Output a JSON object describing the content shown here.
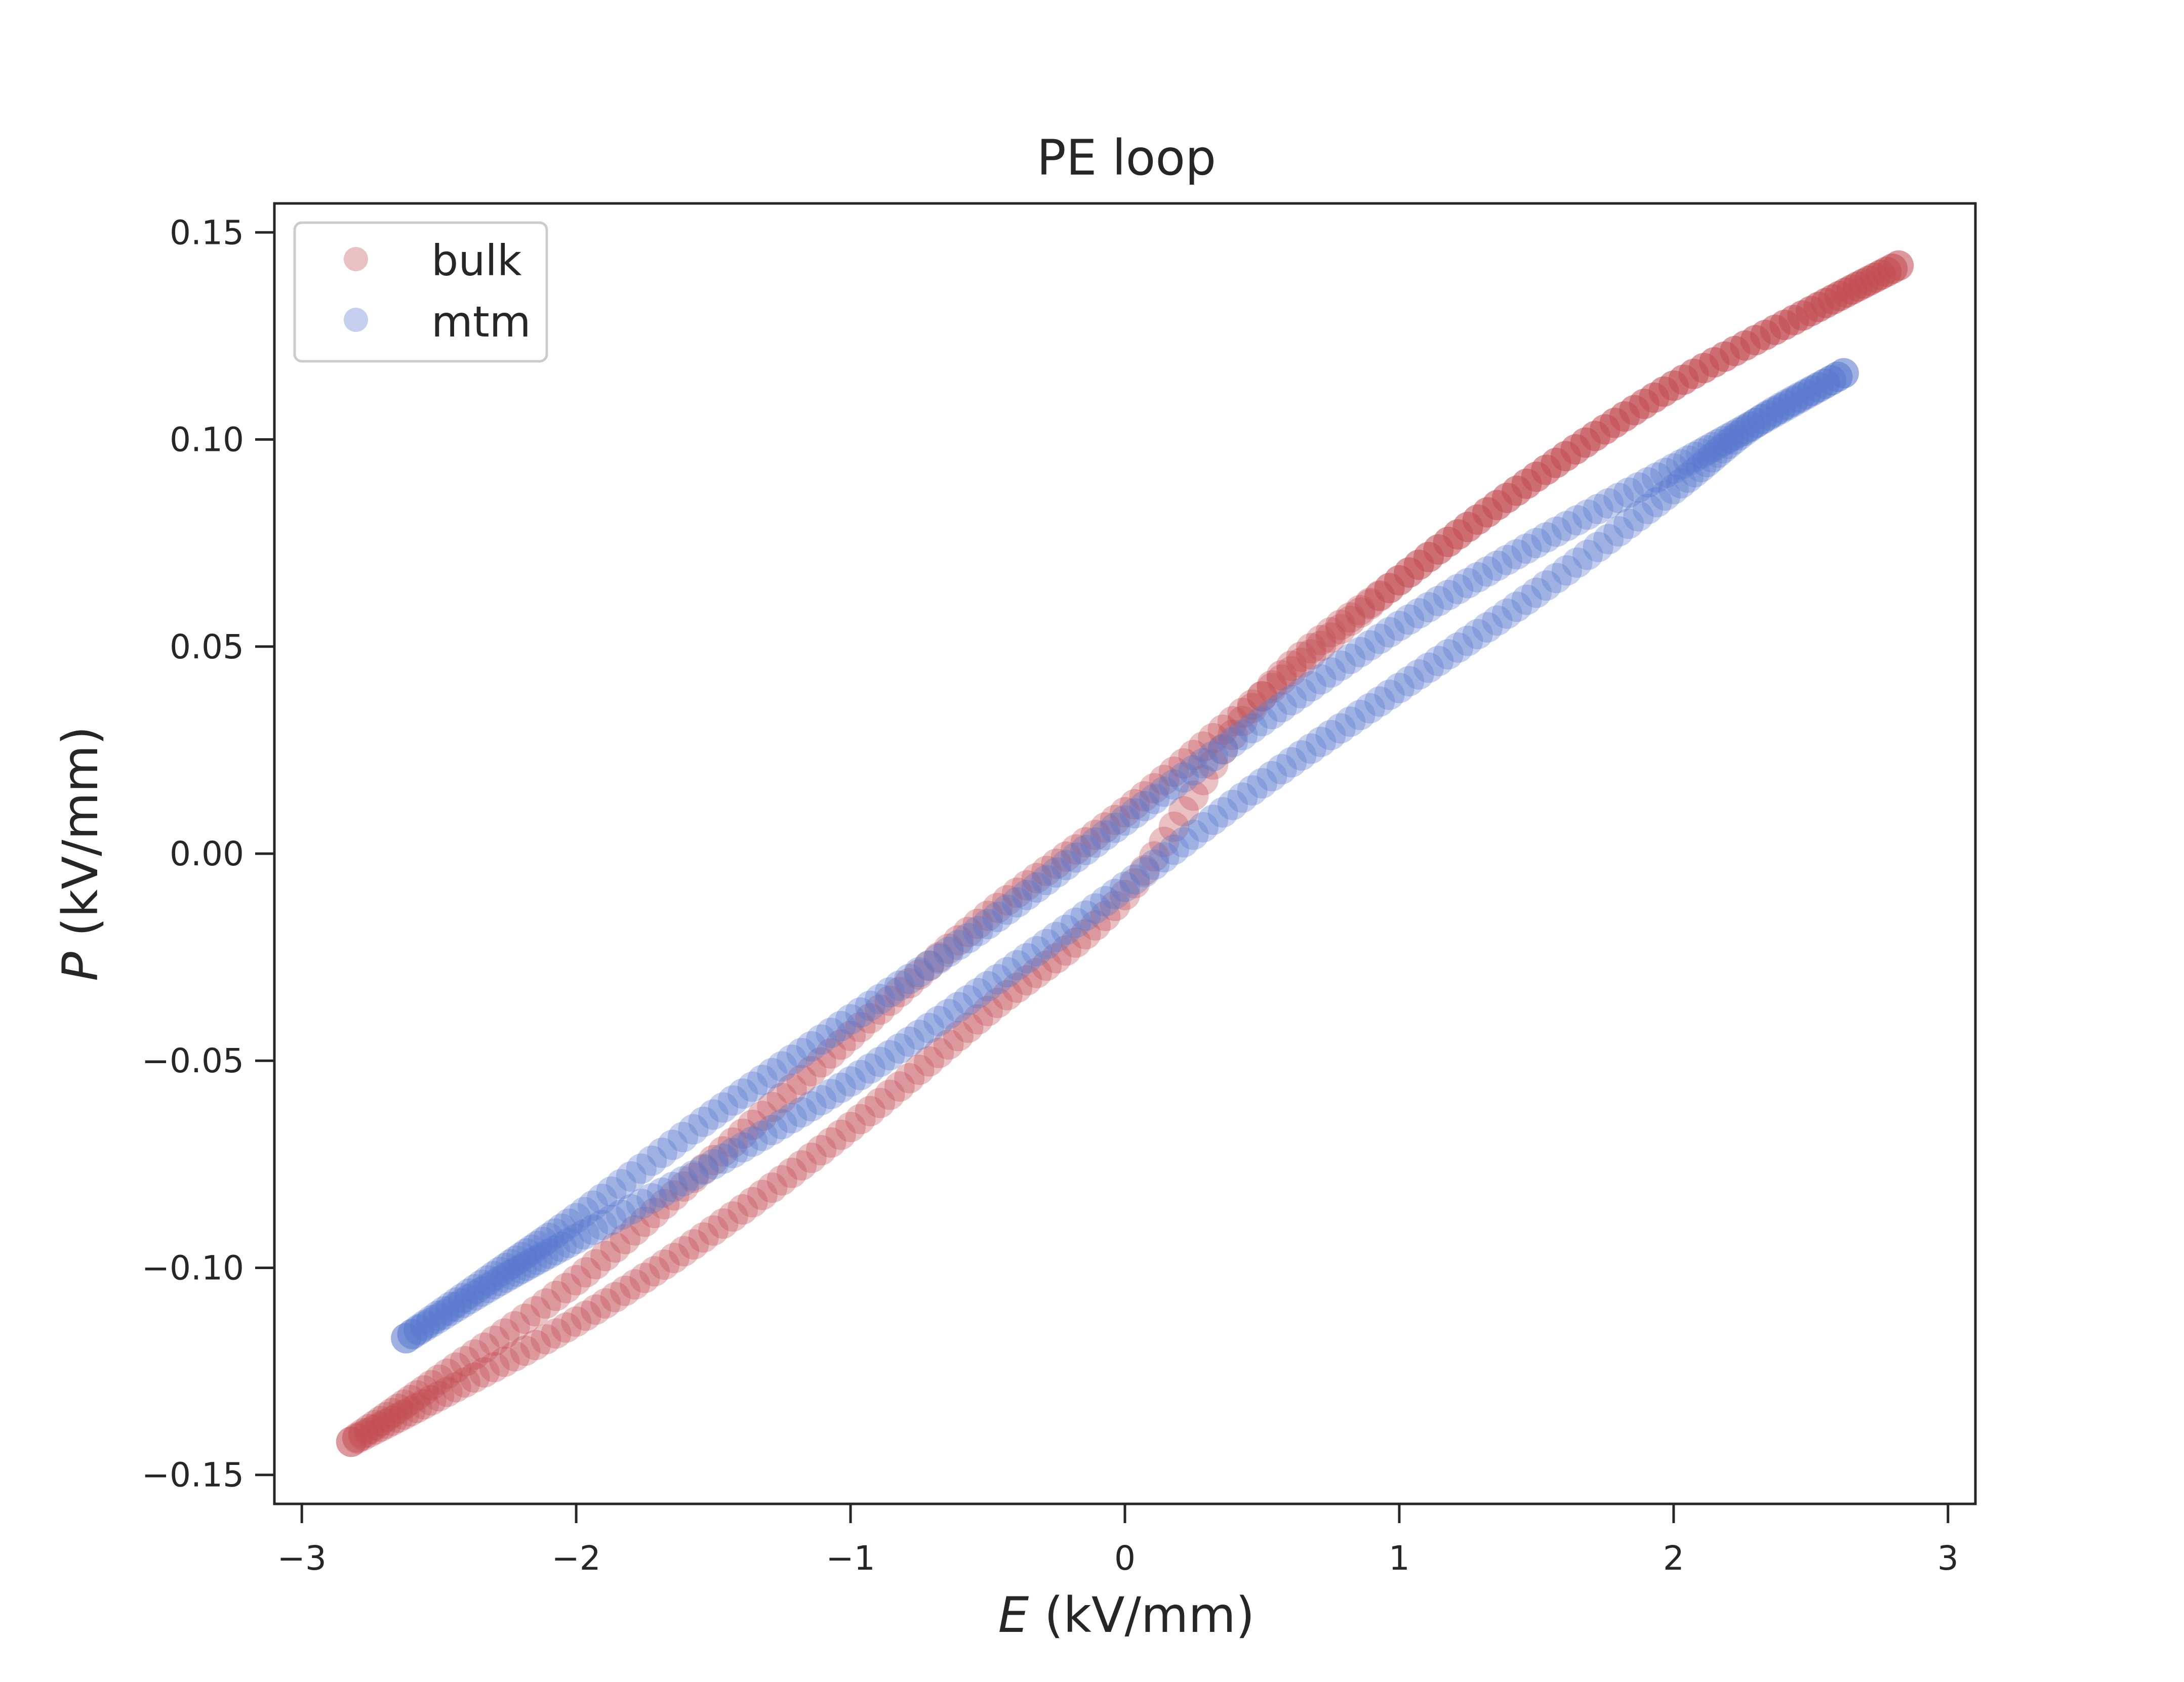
{
  "chart_data": {
    "type": "scatter",
    "title": "PE loop",
    "xlabel_symbol": "E",
    "xlabel_unit": " (kV/mm)",
    "ylabel_symbol": "P",
    "ylabel_unit": " (kV/mm)",
    "xlim": [
      -3.1,
      3.1
    ],
    "ylim": [
      -0.157,
      0.157
    ],
    "xticks": [
      -3,
      -2,
      -1,
      0,
      1,
      2,
      3
    ],
    "xtick_labels": [
      "−3",
      "−2",
      "−1",
      "0",
      "1",
      "2",
      "3"
    ],
    "yticks": [
      -0.15,
      -0.1,
      -0.05,
      0.0,
      0.05,
      0.1,
      0.15
    ],
    "ytick_labels": [
      "−0.15",
      "−0.10",
      "−0.05",
      "0.00",
      "0.05",
      "0.10",
      "0.15"
    ],
    "grid": false,
    "legend_position": "upper-left",
    "marker_alpha": 0.35,
    "series": [
      {
        "name": "bulk",
        "color": "#c44e52",
        "upper_branch": {
          "x": [
            -2.82,
            -2.5,
            -2.0,
            -1.5,
            -1.0,
            -0.5,
            0.0,
            0.5,
            1.0,
            1.5,
            2.0,
            2.5,
            2.82
          ],
          "y": [
            -0.142,
            -0.127,
            -0.103,
            -0.074,
            -0.044,
            -0.015,
            0.01,
            0.038,
            0.066,
            0.091,
            0.113,
            0.131,
            0.142
          ]
        },
        "lower_branch": {
          "x": [
            2.82,
            2.5,
            2.0,
            1.5,
            1.0,
            0.5,
            0.0,
            -0.5,
            -1.0,
            -1.5,
            -2.0,
            -2.5,
            -2.82
          ],
          "y": [
            0.142,
            0.131,
            0.113,
            0.091,
            0.066,
            0.038,
            -0.01,
            -0.038,
            -0.066,
            -0.091,
            -0.113,
            -0.131,
            -0.142
          ]
        }
      },
      {
        "name": "mtm",
        "color": "#5a78cf",
        "upper_branch": {
          "x": [
            -2.62,
            -2.3,
            -2.0,
            -1.5,
            -1.0,
            -0.5,
            0.0,
            0.5,
            1.0,
            1.5,
            2.0,
            2.3,
            2.62
          ],
          "y": [
            -0.117,
            -0.102,
            -0.088,
            -0.063,
            -0.04,
            -0.017,
            0.008,
            0.032,
            0.055,
            0.075,
            0.093,
            0.104,
            0.116
          ]
        },
        "lower_branch": {
          "x": [
            2.62,
            2.3,
            2.0,
            1.5,
            1.0,
            0.5,
            0.0,
            -0.5,
            -1.0,
            -1.5,
            -2.0,
            -2.3,
            -2.62
          ],
          "y": [
            0.116,
            0.104,
            0.088,
            0.063,
            0.04,
            0.017,
            -0.008,
            -0.032,
            -0.055,
            -0.075,
            -0.093,
            -0.104,
            -0.117
          ]
        }
      }
    ]
  }
}
